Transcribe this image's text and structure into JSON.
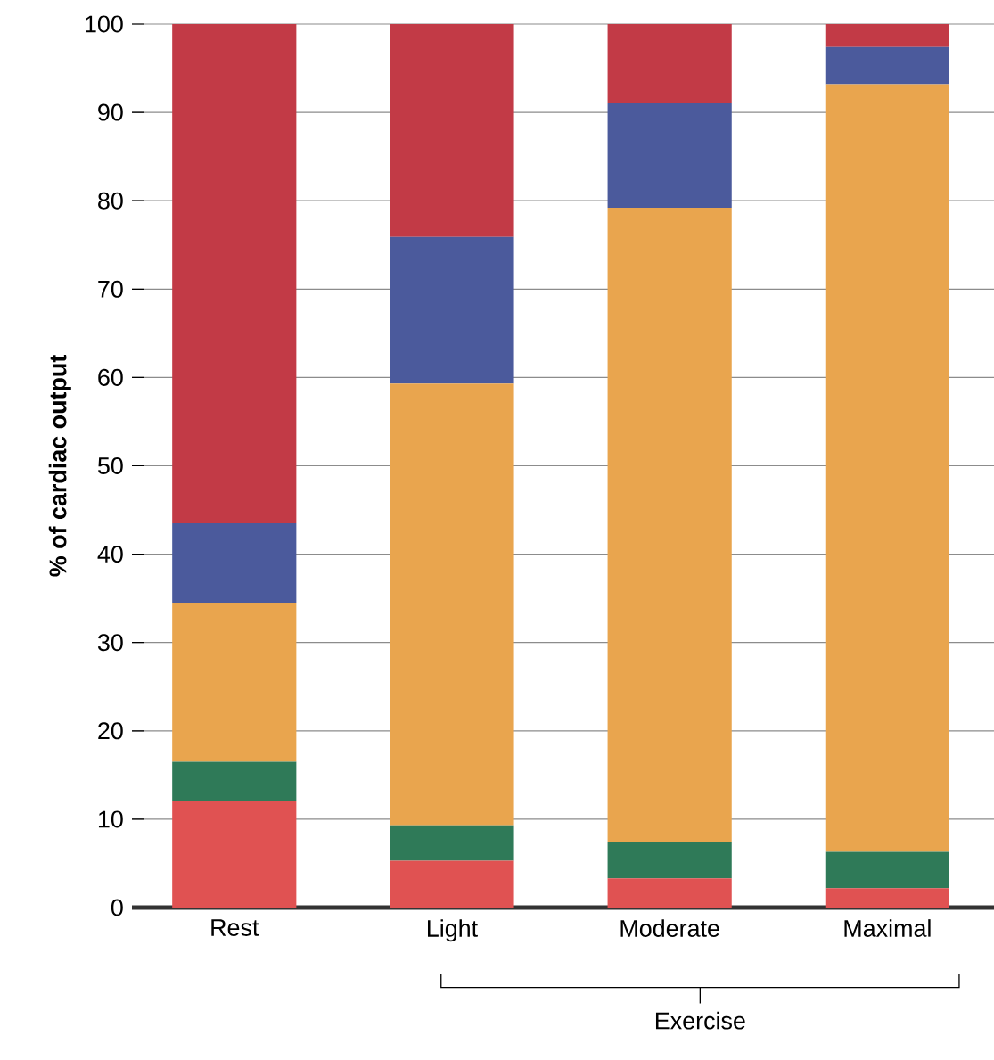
{
  "chart_data": {
    "type": "bar",
    "stacked": true,
    "ylabel": "% of cardiac output",
    "categories": [
      "Rest",
      "Light",
      "Moderate",
      "Maximal"
    ],
    "series": [
      {
        "color": "#e05252",
        "values": [
          12,
          5.3,
          3.3,
          2.2
        ]
      },
      {
        "color": "#2f7a58",
        "values": [
          4.5,
          4,
          4.1,
          4.1
        ]
      },
      {
        "color": "#e9a54e",
        "values": [
          18,
          50,
          71.8,
          86.9
        ]
      },
      {
        "color": "#4b5a9c",
        "values": [
          9,
          16.6,
          11.9,
          4.2
        ]
      },
      {
        "color": "#c23a46",
        "values": [
          56.5,
          24.1,
          8.9,
          2.6
        ]
      }
    ],
    "ylim": [
      0,
      100
    ],
    "yticks": [
      0,
      10,
      20,
      30,
      40,
      50,
      60,
      70,
      80,
      90,
      100
    ],
    "grid": "y",
    "annotations": [
      "Exercise"
    ]
  }
}
